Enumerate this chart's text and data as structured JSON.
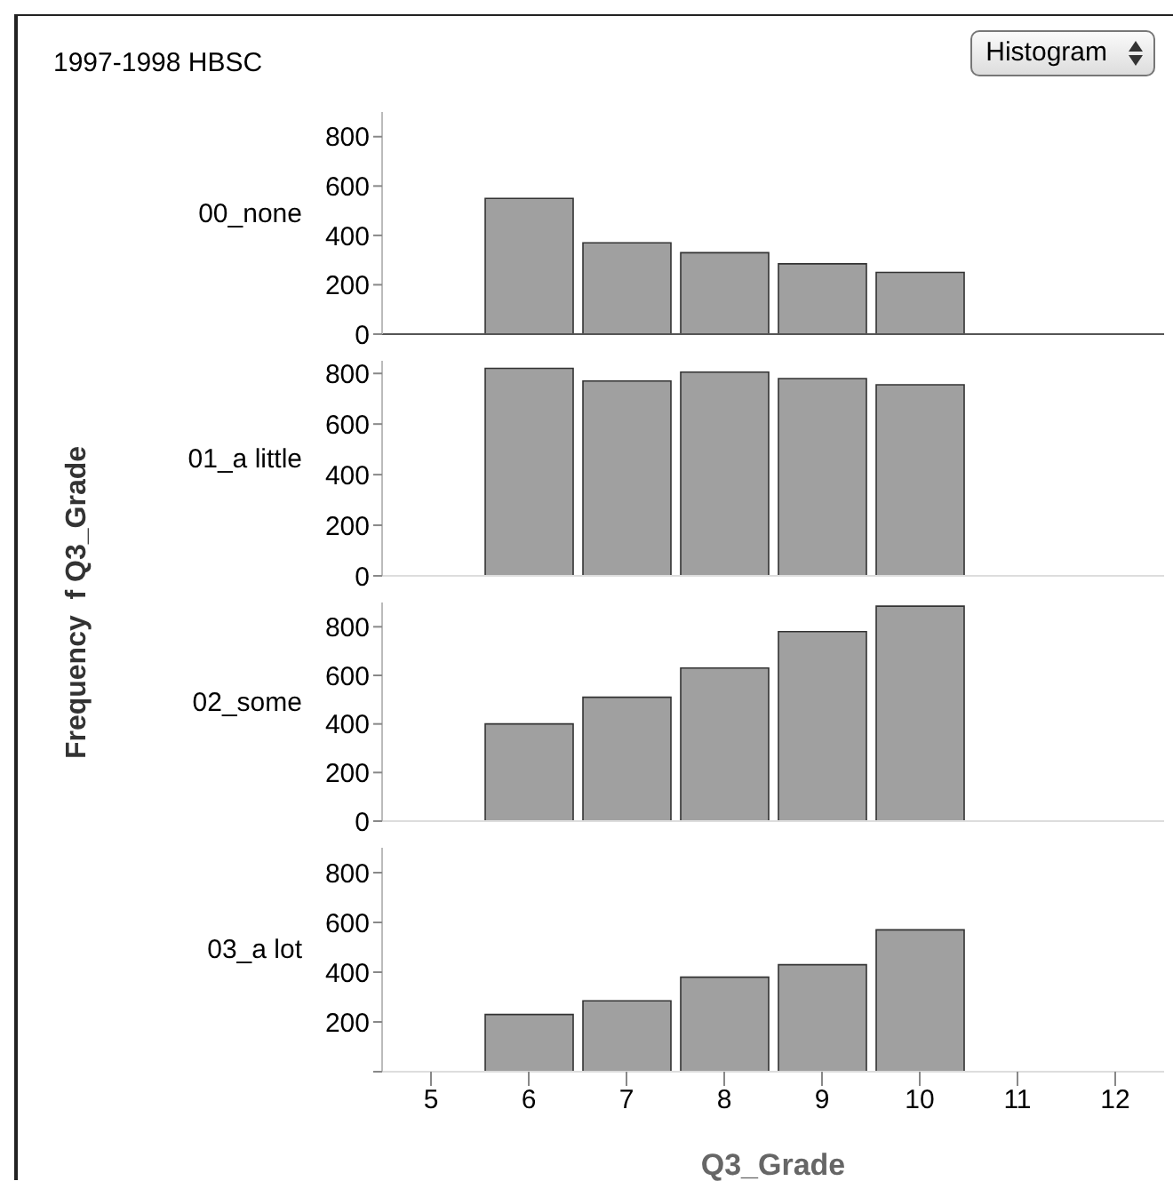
{
  "chart_data": [
    {
      "type": "histogram",
      "title": "1997-1998 HBSC",
      "annotations": [
        "Histogram"
      ],
      "ylabel": "00_none",
      "bins": [
        5.5,
        6.5,
        7.5,
        8.5,
        9.5,
        10.5
      ],
      "values": [
        550,
        370,
        330,
        285,
        250
      ],
      "color": "#a0a0a0",
      "xlim": [
        4.5,
        12.5
      ],
      "ylim": [
        0,
        900
      ],
      "yticks": [
        0,
        200,
        400,
        600,
        800
      ],
      "tick_labels": "y",
      "grid": false,
      "legend": false
    },
    {
      "type": "histogram",
      "annotations": [
        "Frequency  f Q3_Grade"
      ],
      "ylabel": "01_a little",
      "bins": [
        5.5,
        6.5,
        7.5,
        8.5,
        9.5,
        10.5
      ],
      "values": [
        820,
        770,
        805,
        780,
        755
      ],
      "color": "#a0a0a0",
      "xlim": [
        4.5,
        12.5
      ],
      "ylim": [
        0,
        850
      ],
      "yticks": [
        0,
        200,
        400,
        600,
        800
      ],
      "tick_labels": "y",
      "grid": false,
      "legend": false
    },
    {
      "type": "histogram",
      "ylabel": "02_some",
      "bins": [
        5.5,
        6.5,
        7.5,
        8.5,
        9.5,
        10.5
      ],
      "values": [
        400,
        510,
        630,
        780,
        885
      ],
      "color": "#a0a0a0",
      "xlim": [
        4.5,
        12.5
      ],
      "ylim": [
        0,
        900
      ],
      "yticks": [
        0,
        200,
        400,
        600,
        800
      ],
      "tick_labels": "y",
      "grid": false,
      "legend": false
    },
    {
      "type": "histogram",
      "xlabel": "Q3_Grade",
      "ylabel": "03_a lot",
      "bins": [
        5.5,
        6.5,
        7.5,
        8.5,
        9.5,
        10.5
      ],
      "values": [
        230,
        285,
        380,
        430,
        570
      ],
      "color": "#a0a0a0",
      "xlim": [
        4.5,
        12.5
      ],
      "xticks": [
        5,
        6,
        7,
        8,
        9,
        10,
        11,
        12
      ],
      "ylim": [
        0,
        900
      ],
      "yticks": [
        {
          "value": 0,
          "label": null
        },
        200,
        400,
        600,
        800
      ],
      "grid": false,
      "legend": false
    }
  ]
}
